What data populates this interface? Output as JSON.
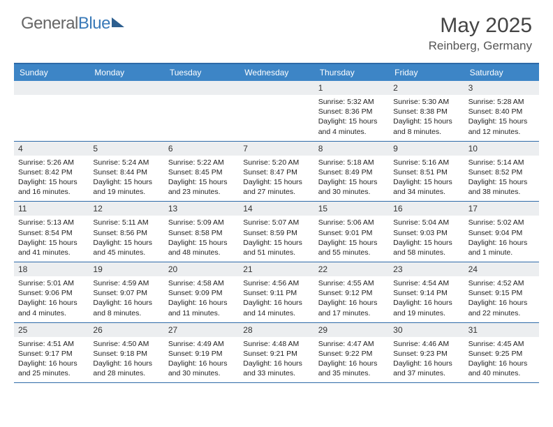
{
  "brand": {
    "part1": "General",
    "part2": "Blue"
  },
  "title": "May 2025",
  "location": "Reinberg, Germany",
  "dow_header_bg": "#3d85c6",
  "rule_color": "#2d6aa8",
  "daynum_bg": "#eceef0",
  "text_color": "#222222",
  "days_of_week": [
    "Sunday",
    "Monday",
    "Tuesday",
    "Wednesday",
    "Thursday",
    "Friday",
    "Saturday"
  ],
  "weeks": [
    [
      null,
      null,
      null,
      null,
      {
        "n": "1",
        "sr": "5:32 AM",
        "ss": "8:36 PM",
        "dl": "15 hours and 4 minutes."
      },
      {
        "n": "2",
        "sr": "5:30 AM",
        "ss": "8:38 PM",
        "dl": "15 hours and 8 minutes."
      },
      {
        "n": "3",
        "sr": "5:28 AM",
        "ss": "8:40 PM",
        "dl": "15 hours and 12 minutes."
      }
    ],
    [
      {
        "n": "4",
        "sr": "5:26 AM",
        "ss": "8:42 PM",
        "dl": "15 hours and 16 minutes."
      },
      {
        "n": "5",
        "sr": "5:24 AM",
        "ss": "8:44 PM",
        "dl": "15 hours and 19 minutes."
      },
      {
        "n": "6",
        "sr": "5:22 AM",
        "ss": "8:45 PM",
        "dl": "15 hours and 23 minutes."
      },
      {
        "n": "7",
        "sr": "5:20 AM",
        "ss": "8:47 PM",
        "dl": "15 hours and 27 minutes."
      },
      {
        "n": "8",
        "sr": "5:18 AM",
        "ss": "8:49 PM",
        "dl": "15 hours and 30 minutes."
      },
      {
        "n": "9",
        "sr": "5:16 AM",
        "ss": "8:51 PM",
        "dl": "15 hours and 34 minutes."
      },
      {
        "n": "10",
        "sr": "5:14 AM",
        "ss": "8:52 PM",
        "dl": "15 hours and 38 minutes."
      }
    ],
    [
      {
        "n": "11",
        "sr": "5:13 AM",
        "ss": "8:54 PM",
        "dl": "15 hours and 41 minutes."
      },
      {
        "n": "12",
        "sr": "5:11 AM",
        "ss": "8:56 PM",
        "dl": "15 hours and 45 minutes."
      },
      {
        "n": "13",
        "sr": "5:09 AM",
        "ss": "8:58 PM",
        "dl": "15 hours and 48 minutes."
      },
      {
        "n": "14",
        "sr": "5:07 AM",
        "ss": "8:59 PM",
        "dl": "15 hours and 51 minutes."
      },
      {
        "n": "15",
        "sr": "5:06 AM",
        "ss": "9:01 PM",
        "dl": "15 hours and 55 minutes."
      },
      {
        "n": "16",
        "sr": "5:04 AM",
        "ss": "9:03 PM",
        "dl": "15 hours and 58 minutes."
      },
      {
        "n": "17",
        "sr": "5:02 AM",
        "ss": "9:04 PM",
        "dl": "16 hours and 1 minute."
      }
    ],
    [
      {
        "n": "18",
        "sr": "5:01 AM",
        "ss": "9:06 PM",
        "dl": "16 hours and 4 minutes."
      },
      {
        "n": "19",
        "sr": "4:59 AM",
        "ss": "9:07 PM",
        "dl": "16 hours and 8 minutes."
      },
      {
        "n": "20",
        "sr": "4:58 AM",
        "ss": "9:09 PM",
        "dl": "16 hours and 11 minutes."
      },
      {
        "n": "21",
        "sr": "4:56 AM",
        "ss": "9:11 PM",
        "dl": "16 hours and 14 minutes."
      },
      {
        "n": "22",
        "sr": "4:55 AM",
        "ss": "9:12 PM",
        "dl": "16 hours and 17 minutes."
      },
      {
        "n": "23",
        "sr": "4:54 AM",
        "ss": "9:14 PM",
        "dl": "16 hours and 19 minutes."
      },
      {
        "n": "24",
        "sr": "4:52 AM",
        "ss": "9:15 PM",
        "dl": "16 hours and 22 minutes."
      }
    ],
    [
      {
        "n": "25",
        "sr": "4:51 AM",
        "ss": "9:17 PM",
        "dl": "16 hours and 25 minutes."
      },
      {
        "n": "26",
        "sr": "4:50 AM",
        "ss": "9:18 PM",
        "dl": "16 hours and 28 minutes."
      },
      {
        "n": "27",
        "sr": "4:49 AM",
        "ss": "9:19 PM",
        "dl": "16 hours and 30 minutes."
      },
      {
        "n": "28",
        "sr": "4:48 AM",
        "ss": "9:21 PM",
        "dl": "16 hours and 33 minutes."
      },
      {
        "n": "29",
        "sr": "4:47 AM",
        "ss": "9:22 PM",
        "dl": "16 hours and 35 minutes."
      },
      {
        "n": "30",
        "sr": "4:46 AM",
        "ss": "9:23 PM",
        "dl": "16 hours and 37 minutes."
      },
      {
        "n": "31",
        "sr": "4:45 AM",
        "ss": "9:25 PM",
        "dl": "16 hours and 40 minutes."
      }
    ]
  ],
  "labels": {
    "sunrise": "Sunrise: ",
    "sunset": "Sunset: ",
    "daylight": "Daylight: "
  }
}
